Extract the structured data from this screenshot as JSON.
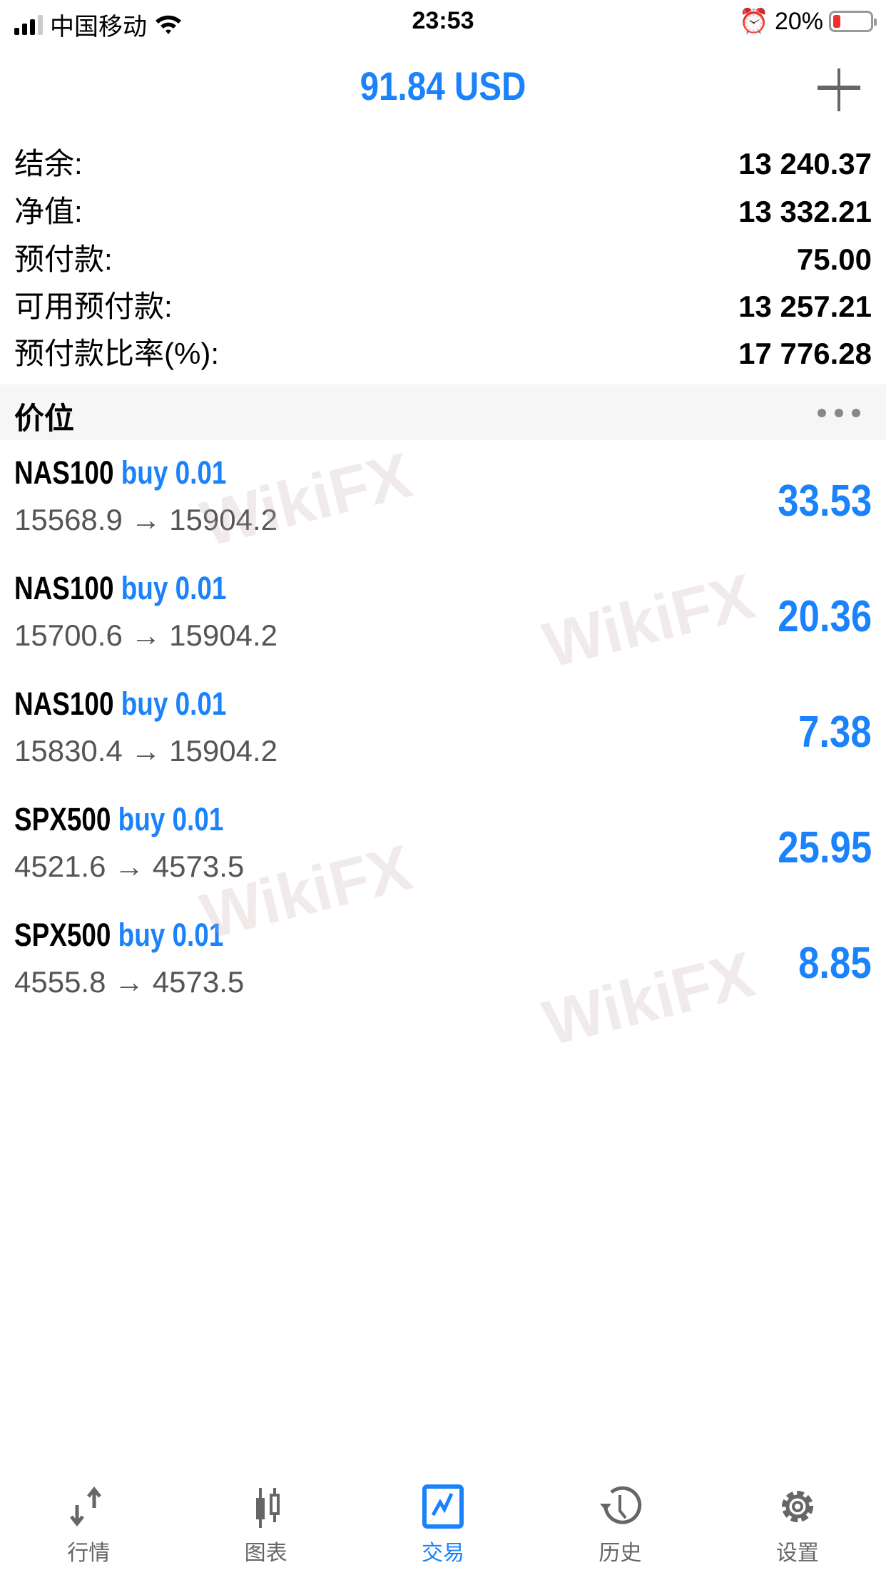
{
  "status": {
    "carrier": "中国移动",
    "time": "23:53",
    "battery": "20%",
    "battery_level": 0.2
  },
  "header": {
    "title": "91.84 USD",
    "add_icon": "plus-icon"
  },
  "summary": [
    {
      "label": "结余:",
      "value": "13 240.37"
    },
    {
      "label": "净值:",
      "value": "13 332.21"
    },
    {
      "label": "预付款:",
      "value": "75.00"
    },
    {
      "label": "可用预付款:",
      "value": "13 257.21"
    },
    {
      "label": "预付款比率(%):",
      "value": "17 776.28"
    }
  ],
  "section": {
    "title": "价位",
    "more_icon": "more-dots-icon"
  },
  "positions": [
    {
      "symbol": "NAS100",
      "side": "buy 0.01",
      "prices": "15568.9 → 15904.2",
      "profit": "33.53"
    },
    {
      "symbol": "NAS100",
      "side": "buy 0.01",
      "prices": "15700.6 → 15904.2",
      "profit": "20.36"
    },
    {
      "symbol": "NAS100",
      "side": "buy 0.01",
      "prices": "15830.4 → 15904.2",
      "profit": "7.38"
    },
    {
      "symbol": "SPX500",
      "side": "buy 0.01",
      "prices": "4521.6 → 4573.5",
      "profit": "25.95"
    },
    {
      "symbol": "SPX500",
      "side": "buy 0.01",
      "prices": "4555.8 → 4573.5",
      "profit": "8.85"
    }
  ],
  "watermark": "WikiFX",
  "tabs": [
    {
      "label": "行情",
      "icon": "quotes-arrows-icon"
    },
    {
      "label": "图表",
      "icon": "candlestick-chart-icon"
    },
    {
      "label": "交易",
      "icon": "trade-chart-icon",
      "active": true
    },
    {
      "label": "历史",
      "icon": "history-clock-icon"
    },
    {
      "label": "设置",
      "icon": "gear-icon"
    }
  ],
  "colors": {
    "accent": "#1a82fb",
    "battery_low": "#f0302a"
  }
}
